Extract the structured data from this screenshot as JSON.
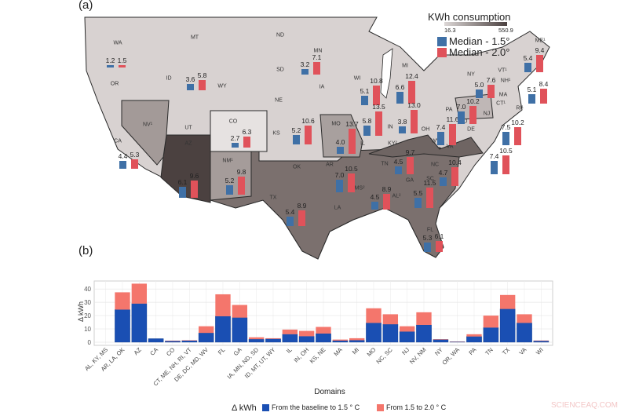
{
  "panel_a_label": "(a)",
  "panel_b_label": "(b)",
  "map": {
    "legend": {
      "title": "KWh consumption",
      "min": "16.3",
      "max": "550.9",
      "gradient_colors": [
        "#dcd7d6",
        "#4b4140"
      ],
      "series": [
        {
          "label": "Median - 1.5°",
          "color": "#3f70a6"
        },
        {
          "label": "Median - 2.0°",
          "color": "#e0525a"
        }
      ]
    },
    "states": [
      "WA",
      "OR",
      "CA",
      "NV¹",
      "ID",
      "MT",
      "WY",
      "UT",
      "CO",
      "AZ",
      "NM¹",
      "ND",
      "SD",
      "NE",
      "KS",
      "OK",
      "TX",
      "MN",
      "IA",
      "MO",
      "AR",
      "LA",
      "WI",
      "IL",
      "MI",
      "IN",
      "OH",
      "KY²",
      "TN",
      "MS²",
      "AL²",
      "GA",
      "FL",
      "SC",
      "NC",
      "VA",
      "WV",
      "MD",
      "DE",
      "PA",
      "NJ",
      "NY",
      "VT¹",
      "NH¹",
      "MA",
      "CT¹",
      "RI¹",
      "ME¹"
    ],
    "bars": [
      {
        "state": "OR",
        "median_1_5": "1.2",
        "median_2_0": "1.5"
      },
      {
        "state": "ID",
        "median_1_5": "3.6",
        "median_2_0": "5.8"
      },
      {
        "state": "CO",
        "median_1_5": "2.7",
        "median_2_0": "6.3"
      },
      {
        "state": "CA",
        "median_1_5": "4.4",
        "median_2_0": "5.3"
      },
      {
        "state": "AZ",
        "median_1_5": "6.1",
        "median_2_0": "9.6"
      },
      {
        "state": "NM",
        "median_1_5": "5.2",
        "median_2_0": "9.8"
      },
      {
        "state": "SD",
        "median_1_5": "3.2",
        "median_2_0": "7.1"
      },
      {
        "state": "KS",
        "median_1_5": "5.2",
        "median_2_0": "10.6"
      },
      {
        "state": "WI",
        "median_1_5": "5.1",
        "median_2_0": "10.8"
      },
      {
        "state": "MO",
        "median_1_5": "4.0",
        "median_2_0": "13.7"
      },
      {
        "state": "IL",
        "median_1_5": "5.8",
        "median_2_0": "13.5"
      },
      {
        "state": "MI",
        "median_1_5": "6.6",
        "median_2_0": "12.4"
      },
      {
        "state": "OH",
        "median_1_5": "3.8",
        "median_2_0": "13.0"
      },
      {
        "state": "TX",
        "median_1_5": "5.4",
        "median_2_0": "8.9"
      },
      {
        "state": "AR",
        "median_1_5": "7.0",
        "median_2_0": "10.5"
      },
      {
        "state": "TN",
        "median_1_5": "4.5",
        "median_2_0": "9.7"
      },
      {
        "state": "AL",
        "median_1_5": "4.5",
        "median_2_0": "8.9"
      },
      {
        "state": "GA",
        "median_1_5": "5.5",
        "median_2_0": "11.5"
      },
      {
        "state": "SC",
        "median_1_5": "4.7",
        "median_2_0": "10.4"
      },
      {
        "state": "FL",
        "median_1_5": "5.3",
        "median_2_0": "6.1"
      },
      {
        "state": "WV",
        "median_1_5": "7.4",
        "median_2_0": "11.6"
      },
      {
        "state": "PA",
        "median_1_5": "7.0",
        "median_2_0": "10.2"
      },
      {
        "state": "NY",
        "median_1_5": "5.0",
        "median_2_0": "7.6"
      },
      {
        "state": "ME",
        "median_1_5": "5.4",
        "median_2_0": "9.4"
      },
      {
        "state": "MA",
        "median_1_5": "5.1",
        "median_2_0": "8.4"
      },
      {
        "state": "NJ",
        "median_1_5": "7.5",
        "median_2_0": "10.2"
      },
      {
        "state": "VA",
        "median_1_5": "7.4",
        "median_2_0": "10.5"
      }
    ]
  },
  "chart_data": {
    "type": "bar",
    "stacked": true,
    "xlabel": "Domains",
    "ylabel": "Δ kWh",
    "ylim": [
      0,
      46
    ],
    "yticks": [
      0,
      10,
      20,
      30,
      40
    ],
    "grid": true,
    "legend_title": "Δ kWh",
    "legend_position": "bottom",
    "categories": [
      "AL, KY, MS",
      "AR, LA, OK",
      "AZ",
      "CA",
      "CO",
      "CT, ME, NH, RI, VT",
      "DE, DC, MD, WV",
      "FL",
      "GA",
      "IA, MN, ND, SD",
      "ID, MT, UT, WY",
      "IL",
      "IN, OH",
      "KS, NE",
      "MA",
      "MI",
      "MO",
      "NC, SC",
      "NJ",
      "NV, NM",
      "NY",
      "OR, WA",
      "PA",
      "TN",
      "TX",
      "VA",
      "WI"
    ],
    "series": [
      {
        "name": "From the baseline to 1.5 ° C",
        "color": "#1a4fb3",
        "values": [
          0,
          24.5,
          29,
          2.7,
          0.9,
          1.2,
          7,
          19.5,
          18.5,
          2.3,
          2.5,
          6,
          4.5,
          6.5,
          1.2,
          1.5,
          14.5,
          13.5,
          8,
          13,
          2,
          0.3,
          4.3,
          11,
          25,
          14.5,
          1
        ]
      },
      {
        "name": "From 1.5 to 2.0 ° C",
        "color": "#f4766c",
        "values": [
          0,
          13,
          15,
          0,
          0.3,
          0.3,
          5,
          16.5,
          9.5,
          1.4,
          0.5,
          3.5,
          4,
          5,
          0.8,
          1.5,
          11,
          7.5,
          4,
          9.5,
          0.3,
          0.2,
          1.7,
          9,
          10.5,
          6.5,
          0.3
        ]
      }
    ]
  },
  "watermark": "SCIENCEAQ.COM"
}
